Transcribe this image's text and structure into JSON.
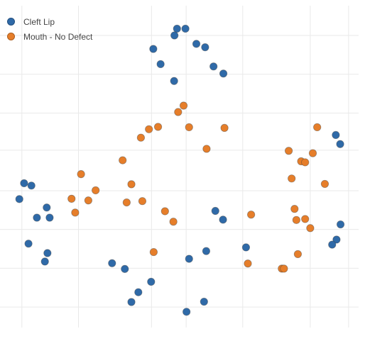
{
  "colors": {
    "cleft_lip": "#2f6aa8",
    "mouth_no_defect": "#e67e2a",
    "grid": "#e9e9e9",
    "marker_edge": "#3a3a3a"
  },
  "legend": {
    "placement": "top-left",
    "items": [
      {
        "label": "Cleft Lip",
        "color": "#2f6aa8"
      },
      {
        "label": "Mouth - No Defect",
        "color": "#e67e2a"
      }
    ]
  },
  "chart_data": {
    "type": "scatter",
    "title": "",
    "xlabel": "",
    "ylabel": "",
    "xlim": [
      0,
      100
    ],
    "ylim": [
      0,
      100
    ],
    "grid": true,
    "axes_labels_visible": false,
    "x_grid": [
      6,
      21.5,
      41.5,
      51,
      66.5,
      85,
      95.5
    ],
    "y_grid": [
      9,
      20.5,
      32,
      43.5,
      55.5,
      66.5,
      78,
      89.5
    ],
    "series": [
      {
        "name": "Cleft Lip",
        "color": "#2f6aa8",
        "points": [
          [
            48.5,
            91.5
          ],
          [
            50.8,
            91.5
          ],
          [
            47.8,
            89.5
          ],
          [
            53.8,
            87
          ],
          [
            56.2,
            86
          ],
          [
            42,
            85.5
          ],
          [
            44,
            81
          ],
          [
            58.5,
            80.3
          ],
          [
            61.2,
            78.2
          ],
          [
            47.7,
            76
          ],
          [
            92,
            60
          ],
          [
            93.2,
            57.3
          ],
          [
            6.6,
            45.7
          ],
          [
            8.6,
            45
          ],
          [
            5.3,
            41
          ],
          [
            12.8,
            38.5
          ],
          [
            10.1,
            35.5
          ],
          [
            13.6,
            35.5
          ],
          [
            59,
            37.5
          ],
          [
            61.1,
            34.9
          ],
          [
            93.3,
            33.5
          ],
          [
            92.2,
            29
          ],
          [
            91,
            27.5
          ],
          [
            7.8,
            27.8
          ],
          [
            13,
            25
          ],
          [
            12.3,
            22.5
          ],
          [
            30.7,
            22
          ],
          [
            34.2,
            20.3
          ],
          [
            51.8,
            23.3
          ],
          [
            56.5,
            25.6
          ],
          [
            67.4,
            26.7
          ],
          [
            41.4,
            16.5
          ],
          [
            37.9,
            13.4
          ],
          [
            36,
            10.5
          ],
          [
            55.9,
            10.6
          ],
          [
            51.1,
            7.6
          ]
        ]
      },
      {
        "name": "Mouth - No Defect",
        "color": "#e67e2a",
        "points": [
          [
            50.3,
            68.7
          ],
          [
            48.8,
            66.8
          ],
          [
            43.3,
            62.4
          ],
          [
            40.8,
            61.7
          ],
          [
            38.6,
            59.2
          ],
          [
            51.8,
            62.3
          ],
          [
            61.5,
            62.1
          ],
          [
            56.6,
            55.9
          ],
          [
            33.6,
            52.5
          ],
          [
            79.1,
            55.3
          ],
          [
            82.5,
            52.2
          ],
          [
            83.6,
            51.9
          ],
          [
            85.7,
            54.6
          ],
          [
            86.9,
            62.3
          ],
          [
            22.2,
            48.4
          ],
          [
            79.9,
            47.1
          ],
          [
            89,
            45.5
          ],
          [
            36,
            45.4
          ],
          [
            26.2,
            43.6
          ],
          [
            19.6,
            41.1
          ],
          [
            24.2,
            40.6
          ],
          [
            34.7,
            40
          ],
          [
            39,
            40.4
          ],
          [
            20.6,
            37
          ],
          [
            45.2,
            37.4
          ],
          [
            47.5,
            34.3
          ],
          [
            68.8,
            36.4
          ],
          [
            80.7,
            38.1
          ],
          [
            81.2,
            34.8
          ],
          [
            83.6,
            35.1
          ],
          [
            85,
            32.4
          ],
          [
            42.1,
            25.3
          ],
          [
            81.6,
            24.7
          ],
          [
            67.9,
            21.9
          ],
          [
            77.2,
            20.4
          ],
          [
            77.8,
            20.4
          ]
        ]
      }
    ]
  }
}
